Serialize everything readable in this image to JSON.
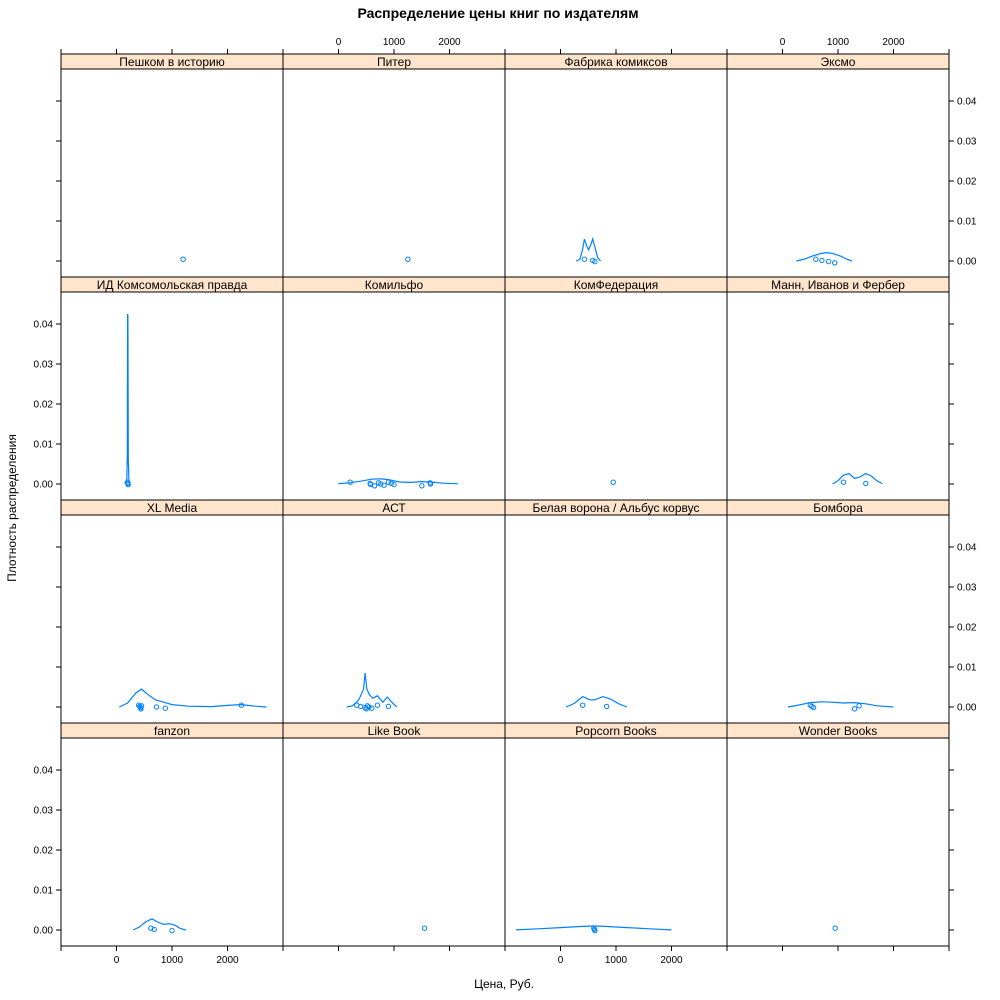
{
  "chart_data": {
    "type": "density-lattice",
    "title": "Распределение цены книг по издателям",
    "xlabel": "Цена, Руб.",
    "ylabel": "Плотность распределения",
    "xlim": [
      -1000,
      3000
    ],
    "ylim": [
      -0.002,
      0.046
    ],
    "x_ticks": [
      0,
      1000,
      2000
    ],
    "y_ticks": [
      0.0,
      0.01,
      0.02,
      0.03,
      0.04
    ],
    "x_tick_labels": [
      "0",
      "1000",
      "2000"
    ],
    "y_tick_labels": [
      "0.00",
      "0.01",
      "0.02",
      "0.03",
      "0.04"
    ],
    "layout": {
      "columns": 4,
      "rows": 4
    },
    "colors": {
      "strip": "#ffe5cc",
      "series": "#0080ff",
      "frame": "#000000"
    },
    "panels": [
      {
        "name": "Пешком в историю",
        "points": [
          1200
        ],
        "curve": []
      },
      {
        "name": "Питер",
        "points": [
          1250
        ],
        "curve": []
      },
      {
        "name": "Фабрика комиксов",
        "points": [
          430,
          580,
          620
        ],
        "curve": [
          [
            280,
            0
          ],
          [
            350,
            0.0004
          ],
          [
            400,
            0.003
          ],
          [
            430,
            0.0055
          ],
          [
            470,
            0.0038
          ],
          [
            505,
            0.0028
          ],
          [
            545,
            0.004
          ],
          [
            580,
            0.0055
          ],
          [
            620,
            0.0035
          ],
          [
            670,
            0.0008
          ],
          [
            720,
            0
          ]
        ]
      },
      {
        "name": "Эксмо",
        "points": [
          600,
          710,
          830,
          940
        ],
        "curve": [
          [
            250,
            0
          ],
          [
            400,
            0.0005
          ],
          [
            550,
            0.0013
          ],
          [
            700,
            0.0019
          ],
          [
            800,
            0.0021
          ],
          [
            900,
            0.0019
          ],
          [
            1050,
            0.0012
          ],
          [
            1150,
            0.0005
          ],
          [
            1250,
            0
          ]
        ]
      },
      {
        "name": "ИД Комсомольская правда",
        "points": [
          200,
          205,
          210
        ],
        "curve": [
          [
            150,
            0
          ],
          [
            185,
            0.001
          ],
          [
            195,
            0.007
          ],
          [
            200,
            0.0425
          ],
          [
            205,
            0.042
          ],
          [
            212,
            0.006
          ],
          [
            225,
            0.0005
          ],
          [
            250,
            0
          ]
        ]
      },
      {
        "name": "Комильфо",
        "points": [
          210,
          570,
          580,
          650,
          720,
          760,
          820,
          900,
          950,
          1000,
          1500,
          1650,
          1660
        ],
        "curve": [
          [
            0,
            0.0001
          ],
          [
            200,
            0.0003
          ],
          [
            400,
            0.0007
          ],
          [
            600,
            0.0012
          ],
          [
            750,
            0.0013
          ],
          [
            900,
            0.0011
          ],
          [
            1100,
            0.0005
          ],
          [
            1300,
            0.0004
          ],
          [
            1500,
            0.0006
          ],
          [
            1650,
            0.0005
          ],
          [
            1900,
            0.0002
          ],
          [
            2150,
            5e-05
          ]
        ]
      },
      {
        "name": "КомФедерация",
        "points": [
          950
        ],
        "curve": []
      },
      {
        "name": "Манн, Иванов и Фербер",
        "points": [
          1100,
          1500
        ],
        "curve": [
          [
            900,
            0
          ],
          [
            1000,
            0.0008
          ],
          [
            1100,
            0.0022
          ],
          [
            1200,
            0.0026
          ],
          [
            1300,
            0.0014
          ],
          [
            1400,
            0.0018
          ],
          [
            1500,
            0.0026
          ],
          [
            1600,
            0.002
          ],
          [
            1700,
            0.0008
          ],
          [
            1800,
            0.0001
          ]
        ]
      },
      {
        "name": "XL Media",
        "points": [
          400,
          420,
          430,
          440,
          450,
          720,
          880,
          2250
        ],
        "curve": [
          [
            50,
            0
          ],
          [
            200,
            0.001
          ],
          [
            350,
            0.0035
          ],
          [
            450,
            0.0045
          ],
          [
            550,
            0.0033
          ],
          [
            700,
            0.0018
          ],
          [
            850,
            0.0012
          ],
          [
            1000,
            0.0006
          ],
          [
            1300,
            0.0002
          ],
          [
            1700,
            0.0001
          ],
          [
            2100,
            0.0005
          ],
          [
            2250,
            0.0006
          ],
          [
            2500,
            0.0002
          ],
          [
            2700,
            0
          ]
        ]
      },
      {
        "name": "АСТ",
        "points": [
          330,
          400,
          480,
          500,
          520,
          550,
          600,
          700,
          900
        ],
        "curve": [
          [
            150,
            0
          ],
          [
            250,
            0.0003
          ],
          [
            350,
            0.0015
          ],
          [
            400,
            0.0028
          ],
          [
            450,
            0.0045
          ],
          [
            480,
            0.0085
          ],
          [
            510,
            0.0045
          ],
          [
            560,
            0.003
          ],
          [
            620,
            0.0022
          ],
          [
            700,
            0.0028
          ],
          [
            800,
            0.0012
          ],
          [
            880,
            0.0025
          ],
          [
            960,
            0.0012
          ],
          [
            1050,
            0
          ]
        ]
      },
      {
        "name": "Белая ворона / Альбус корвус",
        "points": [
          400,
          830
        ],
        "curve": [
          [
            100,
            0
          ],
          [
            250,
            0.0009
          ],
          [
            400,
            0.0026
          ],
          [
            530,
            0.0018
          ],
          [
            620,
            0.0018
          ],
          [
            760,
            0.0026
          ],
          [
            900,
            0.002
          ],
          [
            1050,
            0.0008
          ],
          [
            1200,
            0
          ]
        ]
      },
      {
        "name": "Бомбора",
        "points": [
          500,
          530,
          560,
          1300,
          1380
        ],
        "curve": [
          [
            100,
            0
          ],
          [
            300,
            0.0005
          ],
          [
            500,
            0.0011
          ],
          [
            700,
            0.0013
          ],
          [
            900,
            0.0012
          ],
          [
            1100,
            0.001
          ],
          [
            1300,
            0.0011
          ],
          [
            1500,
            0.0008
          ],
          [
            1700,
            0.0003
          ],
          [
            2000,
            0
          ]
        ]
      },
      {
        "name": "fanzon",
        "points": [
          620,
          680,
          1000
        ],
        "curve": [
          [
            300,
            0
          ],
          [
            420,
            0.0008
          ],
          [
            520,
            0.002
          ],
          [
            640,
            0.0028
          ],
          [
            740,
            0.002
          ],
          [
            850,
            0.0014
          ],
          [
            950,
            0.0016
          ],
          [
            1050,
            0.0012
          ],
          [
            1150,
            0.0004
          ],
          [
            1250,
            0
          ]
        ]
      },
      {
        "name": "Like Book",
        "points": [
          1550
        ],
        "curve": []
      },
      {
        "name": "Popcorn Books",
        "points": [
          600,
          610,
          620
        ],
        "curve": [
          [
            -800,
            3e-05
          ],
          [
            -400,
            0.0003
          ],
          [
            0,
            0.0006
          ],
          [
            400,
            0.0009
          ],
          [
            600,
            0.001
          ],
          [
            800,
            0.0009
          ],
          [
            1200,
            0.0006
          ],
          [
            1600,
            0.0003
          ],
          [
            2000,
            3e-05
          ]
        ]
      },
      {
        "name": "Wonder Books",
        "points": [
          950
        ],
        "curve": []
      }
    ]
  }
}
